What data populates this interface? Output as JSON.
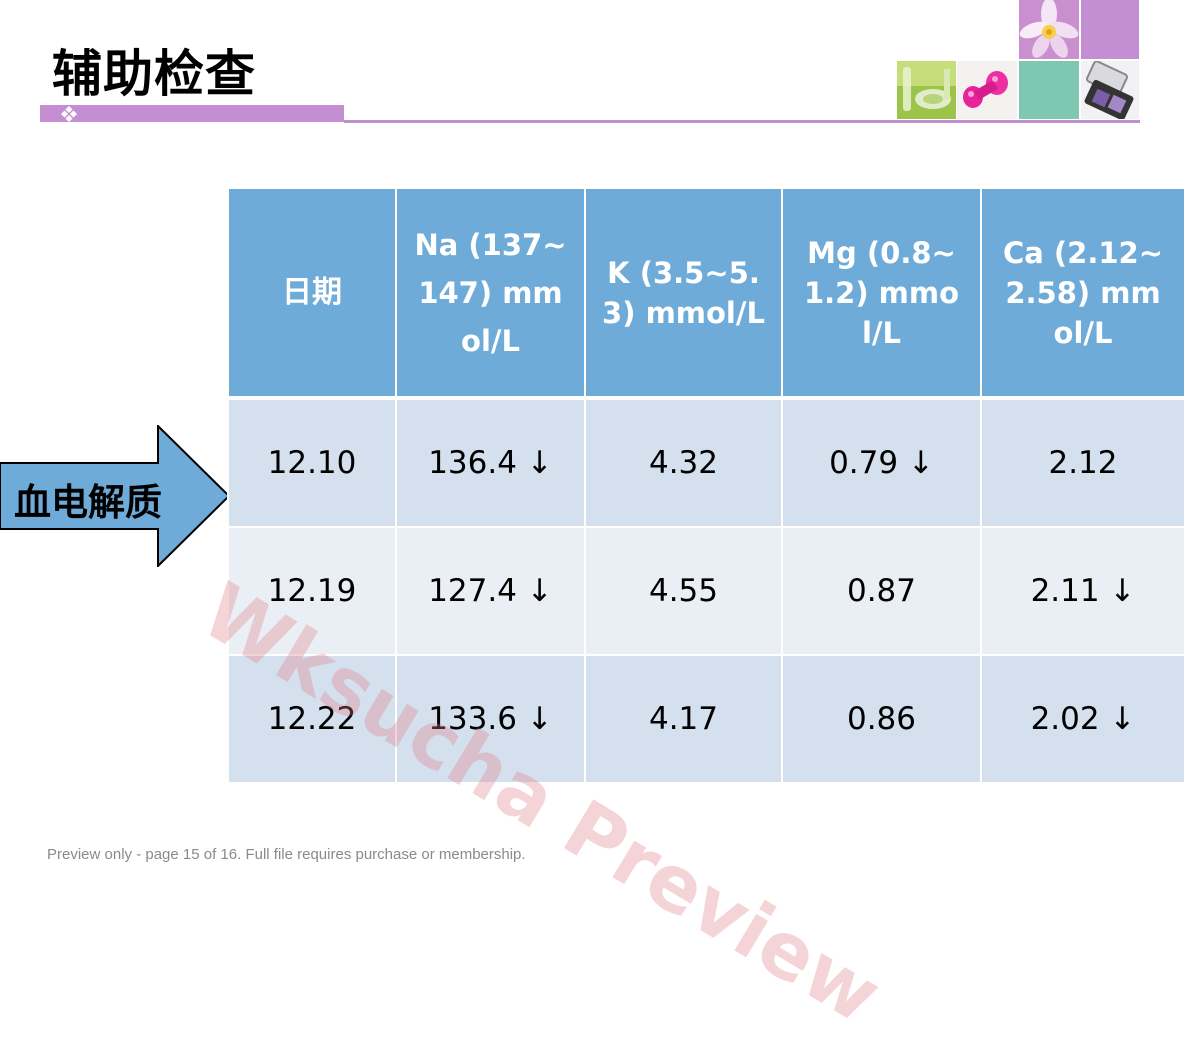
{
  "slide": {
    "title": "辅助检查",
    "accent_color": "#c48fd2",
    "header_color": "#6fabd8"
  },
  "arrow": {
    "label": "血电解质",
    "color": "#6fabd8"
  },
  "table": {
    "headers": [
      {
        "label": "日期"
      },
      {
        "label": "Na (137~147) mmol/L"
      },
      {
        "label": "K (3.5~5.3) mmol/L"
      },
      {
        "label": "Mg (0.8~1.2) mmol/L"
      },
      {
        "label": "Ca (2.12~2.58) mmol/L"
      }
    ],
    "rows": [
      [
        "12.10",
        "136.4 ↓",
        "4.32",
        "0.79 ↓",
        "2.12"
      ],
      [
        "12.19",
        "127.4 ↓",
        "4.55",
        "0.87",
        "2.11 ↓"
      ],
      [
        "12.22",
        "133.6 ↓",
        "4.17",
        "0.86",
        "2.02 ↓"
      ]
    ],
    "low_color": "#e3100f"
  },
  "watermark": "Wksucha Preview",
  "footer": "Preview only - page 15 of 16. Full file requires purchase or membership."
}
